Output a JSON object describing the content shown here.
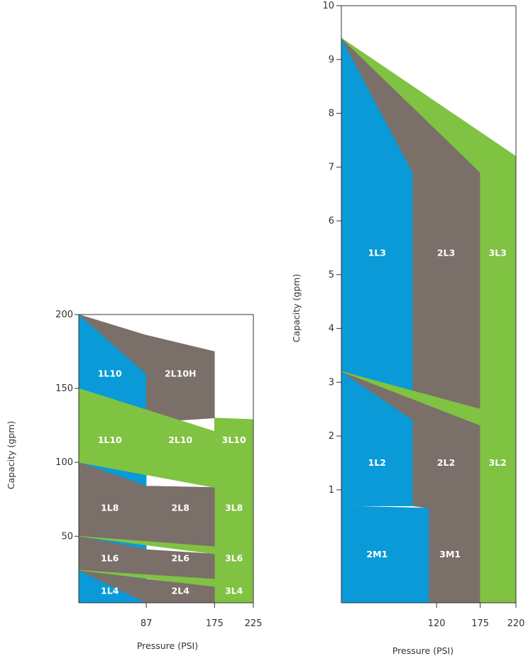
{
  "colors": {
    "blue": "#0A9AD7",
    "brown": "#7B6F69",
    "green": "#80C242",
    "frame": "#333333"
  },
  "chart_data": [
    {
      "type": "area",
      "title": "",
      "xlabel": "Pressure (PSI)",
      "ylabel": "Capacity (gpm)",
      "xlim": [
        0,
        225
      ],
      "ylim": [
        5,
        200
      ],
      "x_tick_labels": [
        "87",
        "175",
        "225"
      ],
      "y_tick_labels": [
        "50",
        "100",
        "150",
        "200"
      ],
      "regions": [
        {
          "name": "1L10",
          "color": "blue",
          "points": [
            [
              0,
              200
            ],
            [
              0,
              150
            ],
            [
              87,
              127
            ],
            [
              87,
              160
            ]
          ]
        },
        {
          "name": "2L10H",
          "color": "brown",
          "points": [
            [
              0,
              200
            ],
            [
              87,
              160
            ],
            [
              87,
              127
            ],
            [
              175,
              130
            ],
            [
              175,
              175
            ],
            [
              87,
              186
            ]
          ]
        },
        {
          "name": "1L10",
          "color": "blue",
          "points": [
            [
              0,
              150
            ],
            [
              0,
              100
            ],
            [
              87,
              84
            ],
            [
              87,
              127
            ]
          ]
        },
        {
          "name": "2L10",
          "color": "brown",
          "points": [
            [
              0,
              150
            ],
            [
              87,
              127
            ],
            [
              175,
              121
            ],
            [
              175,
              94
            ],
            [
              87,
              98
            ],
            [
              0,
              100
            ]
          ]
        },
        {
          "name": "3L10",
          "color": "green",
          "points": [
            [
              0,
              150
            ],
            [
              175,
              121
            ],
            [
              175,
              130
            ],
            [
              225,
              129
            ],
            [
              225,
              5
            ],
            [
              175,
              5
            ],
            [
              175,
              94
            ],
            [
              0,
              100
            ]
          ]
        },
        {
          "name": "1L8",
          "color": "blue",
          "points": [
            [
              0,
              100
            ],
            [
              0,
              50
            ],
            [
              87,
              41
            ],
            [
              87,
              84
            ]
          ]
        },
        {
          "name": "2L8",
          "color": "brown",
          "points": [
            [
              0,
              100
            ],
            [
              87,
              84
            ],
            [
              175,
              83
            ],
            [
              175,
              43
            ],
            [
              87,
              45
            ],
            [
              0,
              50
            ]
          ]
        },
        {
          "name": "3L8",
          "color": "green",
          "points": [
            [
              0,
              100
            ],
            [
              175,
              94
            ],
            [
              175,
              83
            ],
            [
              0,
              100
            ]
          ]
        },
        {
          "name": "1L6",
          "color": "blue",
          "points": [
            [
              0,
              50
            ],
            [
              0,
              27
            ],
            [
              87,
              21
            ],
            [
              87,
              41
            ]
          ]
        },
        {
          "name": "2L6",
          "color": "brown",
          "points": [
            [
              0,
              50
            ],
            [
              87,
              41
            ],
            [
              175,
              38
            ],
            [
              175,
              21
            ],
            [
              87,
              23
            ],
            [
              0,
              27
            ]
          ]
        },
        {
          "name": "3L6",
          "color": "green",
          "points": [
            [
              0,
              50
            ],
            [
              175,
              43
            ],
            [
              175,
              38
            ],
            [
              0,
              50
            ]
          ]
        },
        {
          "name": "1L4",
          "color": "blue",
          "points": [
            [
              0,
              27
            ],
            [
              0,
              5
            ],
            [
              87,
              5
            ],
            [
              87,
              21
            ]
          ]
        },
        {
          "name": "2L4",
          "color": "brown",
          "points": [
            [
              0,
              27
            ],
            [
              87,
              21
            ],
            [
              175,
              16
            ],
            [
              175,
              5
            ],
            [
              87,
              5
            ]
          ]
        },
        {
          "name": "3L4",
          "color": "green",
          "points": [
            [
              0,
              27
            ],
            [
              175,
              21
            ],
            [
              175,
              16
            ],
            [
              0,
              27
            ]
          ]
        }
      ],
      "labels": [
        {
          "text": "1L10",
          "x": 40,
          "y": 160,
          "color": "white"
        },
        {
          "text": "2L10H",
          "x": 131,
          "y": 160,
          "color": "white"
        },
        {
          "text": "1L10",
          "x": 40,
          "y": 115,
          "color": "white"
        },
        {
          "text": "2L10",
          "x": 131,
          "y": 115,
          "color": "white"
        },
        {
          "text": "3L10",
          "x": 200,
          "y": 115,
          "color": "white"
        },
        {
          "text": "1L8",
          "x": 40,
          "y": 69,
          "color": "white"
        },
        {
          "text": "2L8",
          "x": 131,
          "y": 69,
          "color": "white"
        },
        {
          "text": "3L8",
          "x": 200,
          "y": 69,
          "color": "white"
        },
        {
          "text": "1L6",
          "x": 40,
          "y": 35,
          "color": "white"
        },
        {
          "text": "2L6",
          "x": 131,
          "y": 35,
          "color": "white"
        },
        {
          "text": "3L6",
          "x": 200,
          "y": 35,
          "color": "white"
        },
        {
          "text": "1L4",
          "x": 40,
          "y": 13,
          "color": "white"
        },
        {
          "text": "2L4",
          "x": 131,
          "y": 13,
          "color": "white"
        },
        {
          "text": "3L4",
          "x": 200,
          "y": 13,
          "color": "white"
        }
      ]
    },
    {
      "type": "area",
      "title": "",
      "xlabel": "Pressure (PSI)",
      "ylabel": "Capacity (gpm)",
      "xlim": [
        0,
        220
      ],
      "ylim": [
        -1.1,
        10
      ],
      "x_tick_labels": [
        "120",
        "175",
        "220"
      ],
      "y_tick_labels": [
        "1",
        "2",
        "3",
        "4",
        "5",
        "6",
        "7",
        "8",
        "9",
        "10"
      ],
      "regions": [
        {
          "name": "1L3",
          "color": "blue",
          "points": [
            [
              0,
              9.4
            ],
            [
              0,
              3.2
            ],
            [
              90,
              2.8
            ],
            [
              90,
              6.9
            ]
          ]
        },
        {
          "name": "2L3",
          "color": "brown",
          "points": [
            [
              0,
              9.4
            ],
            [
              90,
              6.9
            ],
            [
              90,
              2.8
            ],
            [
              175,
              2.5
            ],
            [
              175,
              6.9
            ]
          ]
        },
        {
          "name": "3L3",
          "color": "green",
          "points": [
            [
              0,
              9.4
            ],
            [
              175,
              6.9
            ],
            [
              175,
              2.5
            ],
            [
              220,
              2.5
            ],
            [
              220,
              7.2
            ]
          ]
        },
        {
          "name": "1L2",
          "color": "blue",
          "points": [
            [
              0,
              3.2
            ],
            [
              0,
              0.7
            ],
            [
              90,
              0.7
            ],
            [
              90,
              2.3
            ]
          ]
        },
        {
          "name": "2L2",
          "color": "brown",
          "points": [
            [
              0,
              3.2
            ],
            [
              90,
              2.3
            ],
            [
              90,
              0.7
            ],
            [
              110,
              0.66
            ],
            [
              110,
              -1.1
            ],
            [
              175,
              -1.1
            ],
            [
              175,
              2.2
            ]
          ]
        },
        {
          "name": "3L2",
          "color": "green",
          "points": [
            [
              0,
              3.2
            ],
            [
              175,
              2.5
            ],
            [
              175,
              2.2
            ],
            [
              0,
              3.2
            ]
          ]
        },
        {
          "name": "3L2",
          "color": "green",
          "points": [
            [
              175,
              2.5
            ],
            [
              220,
              2.5
            ],
            [
              220,
              -1.1
            ],
            [
              175,
              -1.1
            ]
          ]
        },
        {
          "name": "2M1",
          "color": "blue",
          "points": [
            [
              0,
              0.7
            ],
            [
              0,
              -1.1
            ],
            [
              110,
              -1.1
            ],
            [
              110,
              0.66
            ]
          ]
        }
      ],
      "labels": [
        {
          "text": "1L3",
          "x": 45,
          "y": 5.4,
          "color": "white"
        },
        {
          "text": "2L3",
          "x": 132,
          "y": 5.4,
          "color": "white"
        },
        {
          "text": "3L3",
          "x": 197,
          "y": 5.4,
          "color": "white"
        },
        {
          "text": "1L2",
          "x": 45,
          "y": 1.5,
          "color": "white"
        },
        {
          "text": "2L2",
          "x": 132,
          "y": 1.5,
          "color": "white"
        },
        {
          "text": "3L2",
          "x": 197,
          "y": 1.5,
          "color": "white"
        },
        {
          "text": "2M1",
          "x": 45,
          "y": -0.2,
          "color": "white"
        },
        {
          "text": "3M1",
          "x": 137,
          "y": -0.2,
          "color": "white"
        }
      ]
    }
  ]
}
